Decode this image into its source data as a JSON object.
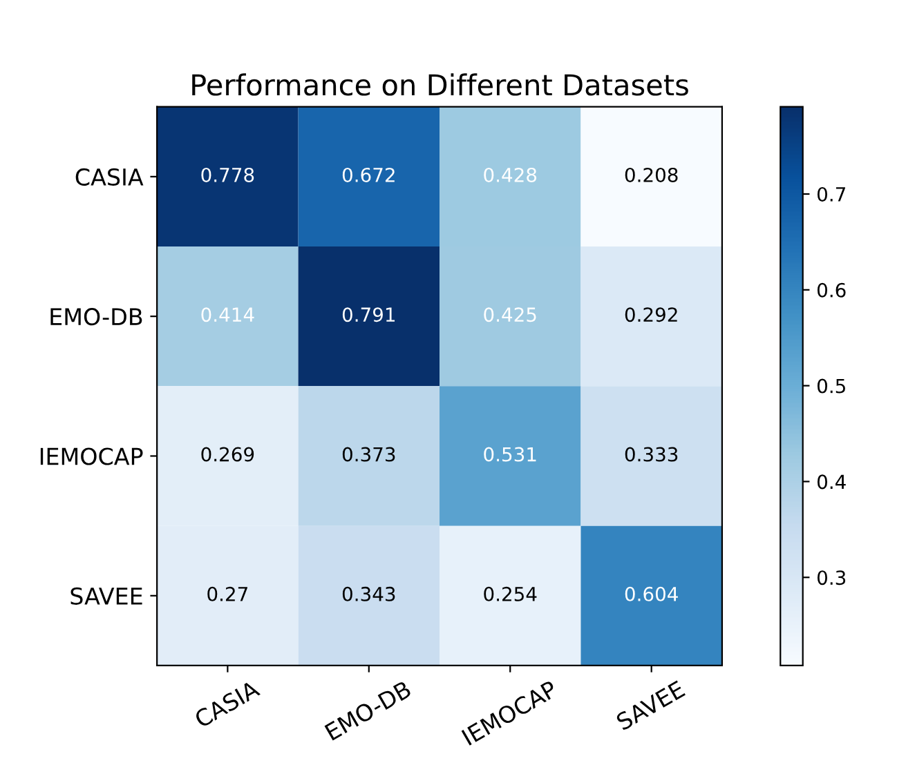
{
  "chart_data": {
    "type": "heatmap",
    "title": "Performance on Different Datasets",
    "categories": [
      "CASIA",
      "EMO-DB",
      "IEMOCAP",
      "SAVEE"
    ],
    "y_categories": [
      "CASIA",
      "EMO-DB",
      "IEMOCAP",
      "SAVEE"
    ],
    "cells": [
      [
        0.778,
        0.672,
        0.428,
        0.208
      ],
      [
        0.414,
        0.791,
        0.425,
        0.292
      ],
      [
        0.269,
        0.373,
        0.531,
        0.333
      ],
      [
        0.27,
        0.343,
        0.254,
        0.604
      ]
    ],
    "data_labels": true,
    "clim": [
      0.208,
      0.791
    ],
    "cticks": [
      0.3,
      0.4,
      0.5,
      0.6,
      0.7
    ]
  }
}
